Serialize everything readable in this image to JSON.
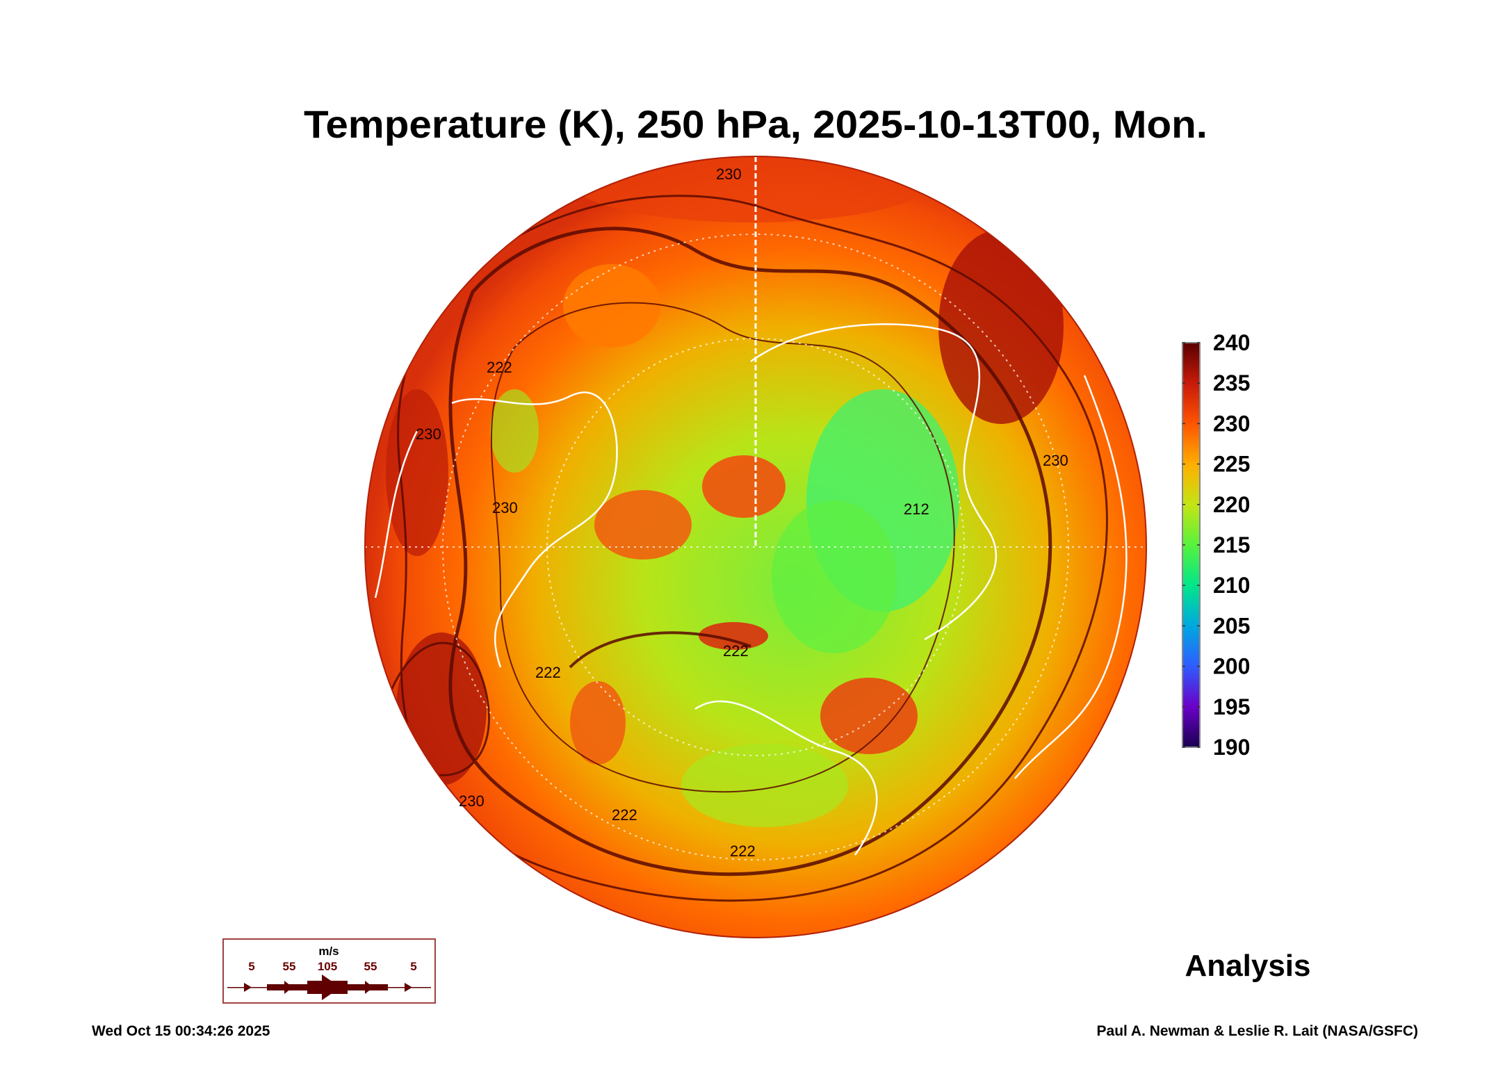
{
  "chart_data": {
    "type": "heatmap",
    "projection": "north polar stereographic",
    "title": "Temperature (K), 250 hPa, 2025-10-13T00, Mon.",
    "variable": "Temperature",
    "units": "K",
    "colorbar": {
      "min": 190,
      "max": 240,
      "ticks": [
        240,
        235,
        230,
        225,
        220,
        215,
        210,
        205,
        200,
        195,
        190
      ],
      "colors": [
        "#1a0050",
        "#6a00c8",
        "#2f5cff",
        "#00a8e0",
        "#00e68a",
        "#58f23c",
        "#c4e414",
        "#ffae00",
        "#ff5400",
        "#c81a0a",
        "#5a0000"
      ]
    },
    "contour_labels": [
      "230",
      "222",
      "230",
      "230",
      "212",
      "222",
      "222",
      "230",
      "222",
      "222",
      "230"
    ],
    "wind_legend": {
      "units": "m/s",
      "values": [
        "5",
        "55",
        "105",
        "55",
        "5"
      ]
    },
    "label": "Analysis"
  },
  "footer": {
    "timestamp": "Wed Oct 15 00:34:26 2025",
    "credit": "Paul A. Newman & Leslie R. Lait (NASA/GSFC)"
  }
}
